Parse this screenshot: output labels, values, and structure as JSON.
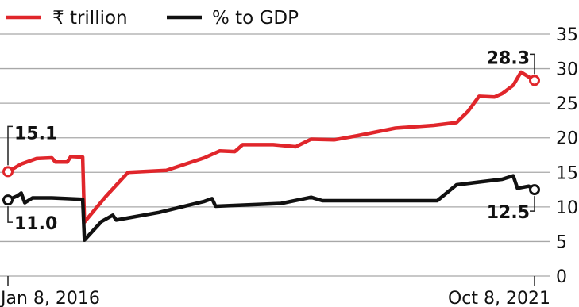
{
  "chart_data": {
    "type": "line",
    "title": "",
    "xlabel": "",
    "ylabel": "",
    "ylim": [
      0,
      35
    ],
    "yticks": [
      0,
      5,
      10,
      15,
      20,
      25,
      30,
      35
    ],
    "grid": true,
    "legend_position": "top-left",
    "x_tick_labels": [
      "Jan 8, 2016",
      "Oct 8, 2021"
    ],
    "x_range": [
      "2016-01-08",
      "2021-10-08"
    ],
    "series": [
      {
        "name": "₹ trillion",
        "color": "#e0262b",
        "points": [
          [
            "2016-01-08",
            15.1
          ],
          [
            "2016-03-01",
            16.2
          ],
          [
            "2016-05-01",
            17.0
          ],
          [
            "2016-07-01",
            17.1
          ],
          [
            "2016-07-15",
            16.5
          ],
          [
            "2016-09-01",
            16.5
          ],
          [
            "2016-09-15",
            17.3
          ],
          [
            "2016-11-01",
            17.2
          ],
          [
            "2016-11-08",
            7.8
          ],
          [
            "2017-02-01",
            11.5
          ],
          [
            "2017-05-01",
            15.0
          ],
          [
            "2017-10-01",
            15.3
          ],
          [
            "2018-03-01",
            17.1
          ],
          [
            "2018-05-01",
            18.1
          ],
          [
            "2018-07-01",
            18.0
          ],
          [
            "2018-08-01",
            19.0
          ],
          [
            "2018-12-01",
            19.0
          ],
          [
            "2019-03-01",
            18.7
          ],
          [
            "2019-05-01",
            19.8
          ],
          [
            "2019-08-01",
            19.7
          ],
          [
            "2019-11-01",
            20.3
          ],
          [
            "2020-04-01",
            21.4
          ],
          [
            "2020-09-01",
            21.8
          ],
          [
            "2020-12-01",
            22.2
          ],
          [
            "2021-01-15",
            23.8
          ],
          [
            "2021-03-01",
            26.0
          ],
          [
            "2021-05-01",
            25.9
          ],
          [
            "2021-06-01",
            26.4
          ],
          [
            "2021-07-15",
            27.6
          ],
          [
            "2021-08-15",
            29.5
          ],
          [
            "2021-10-08",
            28.3
          ]
        ]
      },
      {
        "name": "% to GDP",
        "color": "#111111",
        "points": [
          [
            "2016-01-08",
            11.0
          ],
          [
            "2016-02-15",
            11.6
          ],
          [
            "2016-03-01",
            12.0
          ],
          [
            "2016-03-15",
            10.6
          ],
          [
            "2016-04-15",
            11.3
          ],
          [
            "2016-07-01",
            11.3
          ],
          [
            "2016-09-01",
            11.2
          ],
          [
            "2016-11-01",
            11.1
          ],
          [
            "2016-11-08",
            5.2
          ],
          [
            "2017-01-15",
            7.9
          ],
          [
            "2017-03-01",
            8.8
          ],
          [
            "2017-03-15",
            8.1
          ],
          [
            "2017-09-01",
            9.2
          ],
          [
            "2018-03-01",
            10.8
          ],
          [
            "2018-04-01",
            11.2
          ],
          [
            "2018-04-15",
            10.1
          ],
          [
            "2019-01-01",
            10.5
          ],
          [
            "2019-05-01",
            11.4
          ],
          [
            "2019-06-15",
            10.9
          ],
          [
            "2020-09-15",
            10.9
          ],
          [
            "2020-12-01",
            13.2
          ],
          [
            "2021-03-01",
            13.6
          ],
          [
            "2021-06-01",
            14.0
          ],
          [
            "2021-07-15",
            14.5
          ],
          [
            "2021-08-01",
            12.7
          ],
          [
            "2021-09-15",
            13.0
          ],
          [
            "2021-10-08",
            12.5
          ]
        ]
      }
    ],
    "annotations": [
      {
        "text": "15.1",
        "series": 0,
        "at": "start",
        "value": 15.1
      },
      {
        "text": "11.0",
        "series": 1,
        "at": "start",
        "value": 11.0
      },
      {
        "text": "28.3",
        "series": 0,
        "at": "end",
        "value": 28.3
      },
      {
        "text": "12.5",
        "series": 1,
        "at": "end",
        "value": 12.5
      }
    ]
  }
}
